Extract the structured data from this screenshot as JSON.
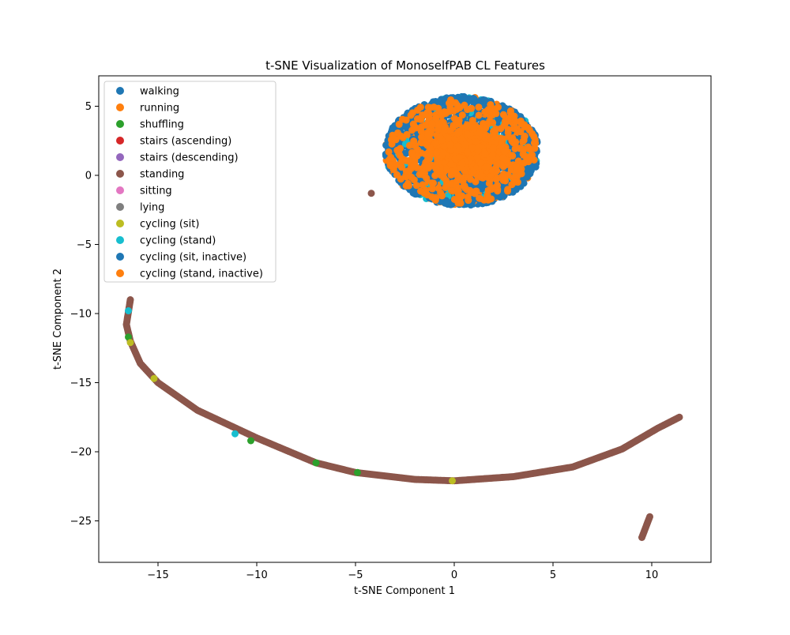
{
  "chart_data": {
    "type": "scatter",
    "title": "t-SNE Visualization of MonoselfPAB CL Features",
    "xlabel": "t-SNE Component 1",
    "ylabel": "t-SNE Component 2",
    "xlim": [
      -18,
      13
    ],
    "ylim": [
      -28,
      7.2
    ],
    "x_ticks": [
      -15,
      -10,
      -5,
      0,
      5,
      10
    ],
    "y_ticks": [
      5,
      0,
      -5,
      -10,
      -15,
      -20,
      -25
    ],
    "legend_position": "upper-left",
    "grid": false,
    "series": [
      {
        "name": "walking",
        "color": "#1f77b4"
      },
      {
        "name": "running",
        "color": "#ff7f0e"
      },
      {
        "name": "shuffling",
        "color": "#2ca02c"
      },
      {
        "name": "stairs (ascending)",
        "color": "#d62728"
      },
      {
        "name": "stairs (descending)",
        "color": "#9467bd"
      },
      {
        "name": "standing",
        "color": "#8c564b"
      },
      {
        "name": "sitting",
        "color": "#e377c2"
      },
      {
        "name": "lying",
        "color": "#7f7f7f"
      },
      {
        "name": "cycling (sit)",
        "color": "#bcbd22"
      },
      {
        "name": "cycling (stand)",
        "color": "#17becf"
      },
      {
        "name": "cycling (sit, inactive)",
        "color": "#1f77b4"
      },
      {
        "name": "cycling (stand, inactive)",
        "color": "#ff7f0e"
      }
    ],
    "clusters": [
      {
        "shape": "ellipse",
        "center": [
          0.4,
          1.75
        ],
        "radius": [
          3.9,
          3.95
        ],
        "series": [
          "walking",
          "cycling (sit, inactive)",
          "cycling (stand)",
          "running",
          "cycling (stand, inactive)"
        ],
        "dominant_series": "cycling (stand, inactive)"
      },
      {
        "shape": "point",
        "x": -4.2,
        "y": -1.3,
        "series": "standing"
      },
      {
        "shape": "curve",
        "series": "standing",
        "path": [
          [
            -16.4,
            -9.0
          ],
          [
            -16.6,
            -10.8
          ],
          [
            -16.4,
            -12.0
          ],
          [
            -15.9,
            -13.6
          ],
          [
            -15.0,
            -15.0
          ],
          [
            -13.0,
            -17.0
          ],
          [
            -10.0,
            -19.0
          ],
          [
            -7.0,
            -20.8
          ],
          [
            -5.0,
            -21.5
          ],
          [
            -2.0,
            -22.0
          ],
          [
            0.0,
            -22.1
          ],
          [
            3.0,
            -21.8
          ],
          [
            6.0,
            -21.1
          ],
          [
            8.5,
            -19.8
          ],
          [
            10.3,
            -18.3
          ],
          [
            11.4,
            -17.5
          ]
        ]
      },
      {
        "shape": "curve",
        "series": "standing",
        "path": [
          [
            9.5,
            -26.2
          ],
          [
            9.9,
            -24.7
          ]
        ]
      }
    ],
    "highlight_points": [
      {
        "x": -16.5,
        "y": -9.8,
        "series": "cycling (stand)"
      },
      {
        "x": -16.5,
        "y": -11.7,
        "series": "shuffling"
      },
      {
        "x": -16.4,
        "y": -12.1,
        "series": "cycling (sit)"
      },
      {
        "x": -15.2,
        "y": -14.7,
        "series": "cycling (sit)"
      },
      {
        "x": -11.1,
        "y": -18.7,
        "series": "cycling (stand)"
      },
      {
        "x": -10.3,
        "y": -19.2,
        "series": "shuffling"
      },
      {
        "x": -7.0,
        "y": -20.8,
        "series": "shuffling"
      },
      {
        "x": -4.9,
        "y": -21.5,
        "series": "shuffling"
      },
      {
        "x": -0.1,
        "y": -22.1,
        "series": "cycling (sit)"
      }
    ]
  }
}
